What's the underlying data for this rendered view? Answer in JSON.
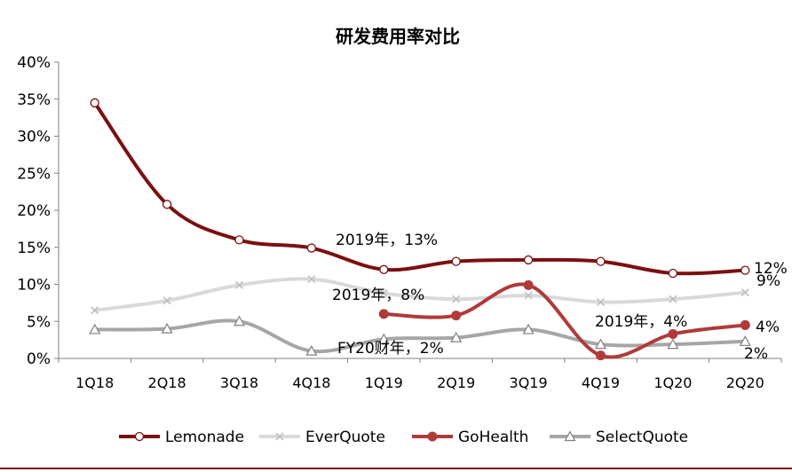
{
  "chart_data": {
    "type": "line",
    "title": "研发费用率对比",
    "categories": [
      "1Q18",
      "2Q18",
      "3Q18",
      "4Q18",
      "1Q19",
      "2Q19",
      "3Q19",
      "4Q19",
      "1Q20",
      "2Q20"
    ],
    "ylim": [
      0,
      40
    ],
    "yticks": [
      "0%",
      "5%",
      "10%",
      "15%",
      "20%",
      "25%",
      "30%",
      "35%",
      "40%"
    ],
    "ytick_values": [
      0,
      5,
      10,
      15,
      20,
      25,
      30,
      35,
      40
    ],
    "grid": false,
    "legend_placement": "bottom",
    "series": [
      {
        "name": "Lemonade",
        "color": "#7b0f0f",
        "marker": "open-circle",
        "values": [
          34.5,
          20.8,
          16.0,
          14.9,
          12.0,
          13.1,
          13.3,
          13.1,
          11.5,
          11.9
        ]
      },
      {
        "name": "EverQuote",
        "color": "#d9d9d9",
        "marker": "cross",
        "values": [
          6.5,
          7.8,
          9.9,
          10.7,
          8.8,
          8.0,
          8.5,
          7.6,
          8.0,
          8.9
        ]
      },
      {
        "name": "GoHealth",
        "color": "#b03a3a",
        "marker": "filled-circle",
        "values": [
          null,
          null,
          null,
          null,
          6.0,
          5.8,
          9.9,
          0.4,
          3.3,
          4.5
        ]
      },
      {
        "name": "SelectQuote",
        "color": "#a6a6a6",
        "marker": "open-triangle",
        "values": [
          3.9,
          4.0,
          5.0,
          1.0,
          2.6,
          2.8,
          3.9,
          1.9,
          1.9,
          2.3
        ]
      }
    ],
    "annotations": [
      {
        "text": "2019年，13%"
      },
      {
        "text": "2019年，8%"
      },
      {
        "text": "2019年，4%"
      },
      {
        "text": "FY20财年，2%"
      },
      {
        "text": "12%"
      },
      {
        "text": "9%"
      },
      {
        "text": "4%"
      },
      {
        "text": "2%"
      }
    ]
  }
}
